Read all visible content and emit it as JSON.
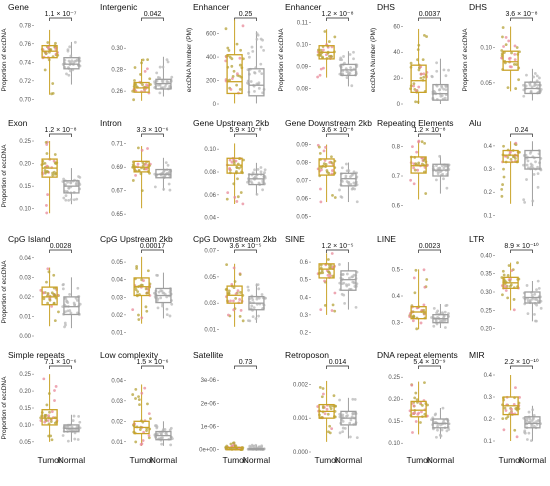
{
  "figure": {
    "y_axis_label": "Proportion of eccDNA",
    "x_categories": [
      "Tumor",
      "Normal"
    ],
    "colors": {
      "tumor_box": "#c9a227",
      "tumor_point": "#b5a33a",
      "normal_box": "#9e9e9e",
      "normal_point": "#b8b8b8",
      "pink_point": "#e88a9a",
      "bracket": "#222222"
    }
  },
  "chart_data": [
    {
      "type": "box",
      "title": "Gene",
      "ylabel": "Proportion of eccDNA",
      "pvalue": "1.1 × 10⁻⁷",
      "yticks": [
        "0.70",
        "0.72",
        "0.74",
        "0.76",
        "0.78"
      ],
      "ylim": [
        0.695,
        0.79
      ],
      "series": [
        {
          "name": "Tumor",
          "box": {
            "q1": 0.745,
            "median": 0.752,
            "q3": 0.758,
            "whisker_low": 0.705,
            "whisker_high": 0.775
          }
        },
        {
          "name": "Normal",
          "box": {
            "q1": 0.733,
            "median": 0.738,
            "q3": 0.745,
            "whisker_low": 0.716,
            "whisker_high": 0.762
          }
        }
      ]
    },
    {
      "type": "box",
      "title": "Intergenic",
      "ylabel": "",
      "pvalue": "0.042",
      "yticks": [
        "0.26",
        "0.28",
        "0.30"
      ],
      "ylim": [
        0.248,
        0.33
      ],
      "series": [
        {
          "name": "Tumor",
          "box": {
            "q1": 0.259,
            "median": 0.263,
            "q3": 0.268,
            "whisker_low": 0.251,
            "whisker_high": 0.29
          }
        },
        {
          "name": "Normal",
          "box": {
            "q1": 0.262,
            "median": 0.267,
            "q3": 0.271,
            "whisker_low": 0.255,
            "whisker_high": 0.292
          }
        }
      ]
    },
    {
      "type": "box",
      "title": "Enhancer",
      "ylabel": "eccDNA Number (PM)",
      "pvalue": "0.25",
      "yticks": [
        "0",
        "200",
        "400",
        "600"
      ],
      "ylim": [
        0,
        750
      ],
      "series": [
        {
          "name": "Tumor",
          "box": {
            "q1": 90,
            "median": 190,
            "q3": 420,
            "whisker_low": 5,
            "whisker_high": 720
          }
        },
        {
          "name": "Normal",
          "box": {
            "q1": 70,
            "median": 160,
            "q3": 300,
            "whisker_low": 5,
            "whisker_high": 620
          }
        }
      ]
    },
    {
      "type": "box",
      "title": "Enhancer",
      "ylabel": "Proportion of eccDNA",
      "pvalue": "1.2 × 10⁻⁸",
      "yticks": [
        "0.08",
        "0.09",
        "0.10",
        "0.11"
      ],
      "ylim": [
        0.073,
        0.113
      ],
      "series": [
        {
          "name": "Tumor",
          "box": {
            "q1": 0.0935,
            "median": 0.0965,
            "q3": 0.0995,
            "whisker_low": 0.085,
            "whisker_high": 0.107
          }
        },
        {
          "name": "Normal",
          "box": {
            "q1": 0.086,
            "median": 0.0885,
            "q3": 0.091,
            "whisker_low": 0.081,
            "whisker_high": 0.097
          }
        }
      ]
    },
    {
      "type": "box",
      "title": "DHS",
      "ylabel": "eccDNA Number (PM)",
      "pvalue": "0.0037",
      "yticks": [
        "0",
        "20",
        "40",
        "60"
      ],
      "ylim": [
        0,
        68
      ],
      "series": [
        {
          "name": "Tumor",
          "box": {
            "q1": 9,
            "median": 18,
            "q3": 30,
            "whisker_low": 0,
            "whisker_high": 58
          }
        },
        {
          "name": "Normal",
          "box": {
            "q1": 3,
            "median": 8,
            "q3": 15,
            "whisker_low": 0,
            "whisker_high": 35
          }
        }
      ]
    },
    {
      "type": "box",
      "title": "DHS",
      "ylabel": "Proportion of eccDNA",
      "pvalue": "3.6 × 10⁻⁸",
      "yticks": [
        "0.05",
        "0.10"
      ],
      "ylim": [
        0.02,
        0.145
      ],
      "series": [
        {
          "name": "Tumor",
          "box": {
            "q1": 0.068,
            "median": 0.08,
            "q3": 0.095,
            "whisker_low": 0.038,
            "whisker_high": 0.13
          }
        },
        {
          "name": "Normal",
          "box": {
            "q1": 0.035,
            "median": 0.042,
            "q3": 0.051,
            "whisker_low": 0.025,
            "whisker_high": 0.07
          }
        }
      ]
    },
    {
      "type": "box",
      "title": "Exon",
      "ylabel": "Proportion of eccDNA",
      "pvalue": "1.2 × 10⁻⁸",
      "yticks": [
        "0.10",
        "0.15",
        "0.20",
        "0.25"
      ],
      "ylim": [
        0.075,
        0.27
      ],
      "series": [
        {
          "name": "Tumor",
          "box": {
            "q1": 0.17,
            "median": 0.19,
            "q3": 0.21,
            "whisker_low": 0.09,
            "whisker_high": 0.25
          }
        },
        {
          "name": "Normal",
          "box": {
            "q1": 0.135,
            "median": 0.15,
            "q3": 0.162,
            "whisker_low": 0.11,
            "whisker_high": 0.19
          }
        }
      ]
    },
    {
      "type": "box",
      "title": "Intron",
      "ylabel": "",
      "pvalue": "3.3 × 10⁻⁶",
      "yticks": [
        "0.65",
        "0.67",
        "0.69",
        "0.71"
      ],
      "ylim": [
        0.645,
        0.72
      ],
      "series": [
        {
          "name": "Tumor",
          "box": {
            "q1": 0.686,
            "median": 0.69,
            "q3": 0.695,
            "whisker_low": 0.655,
            "whisker_high": 0.708
          }
        },
        {
          "name": "Normal",
          "box": {
            "q1": 0.681,
            "median": 0.684,
            "q3": 0.688,
            "whisker_low": 0.67,
            "whisker_high": 0.698
          }
        }
      ]
    },
    {
      "type": "box",
      "title": "Gene Upstream 2kb",
      "ylabel": "",
      "pvalue": "5.9 × 10⁻⁸",
      "yticks": [
        "0.04",
        "0.06",
        "0.08",
        "0.10"
      ],
      "ylim": [
        0.038,
        0.115
      ],
      "series": [
        {
          "name": "Tumor",
          "box": {
            "q1": 0.079,
            "median": 0.086,
            "q3": 0.092,
            "whisker_low": 0.052,
            "whisker_high": 0.105
          }
        },
        {
          "name": "Normal",
          "box": {
            "q1": 0.069,
            "median": 0.074,
            "q3": 0.078,
            "whisker_low": 0.06,
            "whisker_high": 0.088
          }
        }
      ]
    },
    {
      "type": "box",
      "title": "Gene Downstream 2kb",
      "ylabel": "",
      "pvalue": "3.6 × 10⁻⁸",
      "yticks": [
        "0.05",
        "0.06",
        "0.07",
        "0.08",
        "0.09"
      ],
      "ylim": [
        0.048,
        0.097
      ],
      "series": [
        {
          "name": "Tumor",
          "box": {
            "q1": 0.073,
            "median": 0.078,
            "q3": 0.082,
            "whisker_low": 0.058,
            "whisker_high": 0.09
          }
        },
        {
          "name": "Normal",
          "box": {
            "q1": 0.067,
            "median": 0.071,
            "q3": 0.074,
            "whisker_low": 0.058,
            "whisker_high": 0.08
          }
        }
      ]
    },
    {
      "type": "box",
      "title": "Repeating Elements",
      "ylabel": "",
      "pvalue": "1.2 × 10⁻⁸",
      "yticks": [
        "0.6",
        "0.7",
        "0.8"
      ],
      "ylim": [
        0.55,
        0.85
      ],
      "series": [
        {
          "name": "Tumor",
          "box": {
            "q1": 0.71,
            "median": 0.735,
            "q3": 0.765,
            "whisker_low": 0.62,
            "whisker_high": 0.82
          }
        },
        {
          "name": "Normal",
          "box": {
            "q1": 0.7,
            "median": 0.72,
            "q3": 0.74,
            "whisker_low": 0.64,
            "whisker_high": 0.77
          }
        }
      ]
    },
    {
      "type": "box",
      "title": "Alu",
      "ylabel": "",
      "pvalue": "0.24",
      "yticks": [
        "0.1",
        "0.2",
        "0.3",
        "0.4"
      ],
      "ylim": [
        0.08,
        0.46
      ],
      "series": [
        {
          "name": "Tumor",
          "box": {
            "q1": 0.33,
            "median": 0.36,
            "q3": 0.38,
            "whisker_low": 0.15,
            "whisker_high": 0.42
          }
        },
        {
          "name": "Normal",
          "box": {
            "q1": 0.3,
            "median": 0.35,
            "q3": 0.38,
            "whisker_low": 0.14,
            "whisker_high": 0.42
          }
        }
      ]
    },
    {
      "type": "box",
      "title": "CpG Island",
      "ylabel": "Proportion of eccDNA",
      "pvalue": "0.0028",
      "yticks": [
        "0.00",
        "0.01",
        "0.02",
        "0.03",
        "0.04"
      ],
      "ylim": [
        0,
        0.045
      ],
      "series": [
        {
          "name": "Tumor",
          "box": {
            "q1": 0.016,
            "median": 0.02,
            "q3": 0.025,
            "whisker_low": 0.005,
            "whisker_high": 0.035
          }
        },
        {
          "name": "Normal",
          "box": {
            "q1": 0.011,
            "median": 0.015,
            "q3": 0.02,
            "whisker_low": 0.004,
            "whisker_high": 0.03
          }
        }
      ]
    },
    {
      "type": "box",
      "title": "CpG Upstream 2kb",
      "ylabel": "",
      "pvalue": "0.00017",
      "yticks": [
        "0.01",
        "0.02",
        "0.03",
        "0.04",
        "0.05"
      ],
      "ylim": [
        0.008,
        0.058
      ],
      "series": [
        {
          "name": "Tumor",
          "box": {
            "q1": 0.031,
            "median": 0.036,
            "q3": 0.041,
            "whisker_low": 0.015,
            "whisker_high": 0.053
          }
        },
        {
          "name": "Normal",
          "box": {
            "q1": 0.027,
            "median": 0.031,
            "q3": 0.035,
            "whisker_low": 0.018,
            "whisker_high": 0.044
          }
        }
      ]
    },
    {
      "type": "box",
      "title": "CpG Downstream 2kb",
      "ylabel": "",
      "pvalue": "3.6 × 10⁻⁵",
      "yticks": [
        "0.01",
        "0.03",
        "0.05",
        "0.07"
      ],
      "ylim": [
        0.005,
        0.072
      ],
      "series": [
        {
          "name": "Tumor",
          "box": {
            "q1": 0.03,
            "median": 0.036,
            "q3": 0.043,
            "whisker_low": 0.012,
            "whisker_high": 0.06
          }
        },
        {
          "name": "Normal",
          "box": {
            "q1": 0.025,
            "median": 0.03,
            "q3": 0.035,
            "whisker_low": 0.015,
            "whisker_high": 0.045
          }
        }
      ]
    },
    {
      "type": "box",
      "title": "SINE",
      "ylabel": "",
      "pvalue": "1.2 × 10⁻⁵",
      "yticks": [
        "0.2",
        "0.3",
        "0.4",
        "0.5",
        "0.6"
      ],
      "ylim": [
        0.18,
        0.68
      ],
      "series": [
        {
          "name": "Tumor",
          "box": {
            "q1": 0.51,
            "median": 0.56,
            "q3": 0.59,
            "whisker_low": 0.3,
            "whisker_high": 0.65
          }
        },
        {
          "name": "Normal",
          "box": {
            "q1": 0.44,
            "median": 0.5,
            "q3": 0.55,
            "whisker_low": 0.33,
            "whisker_high": 0.6
          }
        }
      ]
    },
    {
      "type": "box",
      "title": "LINE",
      "ylabel": "",
      "pvalue": "0.0023",
      "yticks": [
        "0.3",
        "0.4",
        "0.5"
      ],
      "ylim": [
        0.25,
        0.58
      ],
      "series": [
        {
          "name": "Tumor",
          "box": {
            "q1": 0.315,
            "median": 0.34,
            "q3": 0.36,
            "whisker_low": 0.275,
            "whisker_high": 0.5
          }
        },
        {
          "name": "Normal",
          "box": {
            "q1": 0.3,
            "median": 0.315,
            "q3": 0.33,
            "whisker_low": 0.28,
            "whisker_high": 0.37
          }
        }
      ]
    },
    {
      "type": "box",
      "title": "LTR",
      "ylabel": "",
      "pvalue": "8.9 × 10⁻¹⁰",
      "yticks": [
        "0.20",
        "0.25",
        "0.30",
        "0.35",
        "0.40"
      ],
      "ylim": [
        0.18,
        0.42
      ],
      "series": [
        {
          "name": "Tumor",
          "box": {
            "q1": 0.31,
            "median": 0.325,
            "q3": 0.34,
            "whisker_low": 0.25,
            "whisker_high": 0.38
          }
        },
        {
          "name": "Normal",
          "box": {
            "q1": 0.27,
            "median": 0.285,
            "q3": 0.3,
            "whisker_low": 0.22,
            "whisker_high": 0.33
          }
        }
      ]
    },
    {
      "type": "box",
      "title": "Simple repeats",
      "ylabel": "Proportion of eccDNA",
      "pvalue": "7.1 × 10⁻⁶",
      "yticks": [
        "0.05",
        "0.10",
        "0.15",
        "0.20",
        "0.25"
      ],
      "ylim": [
        0.02,
        0.28
      ],
      "series": [
        {
          "name": "Tumor",
          "box": {
            "q1": 0.1,
            "median": 0.12,
            "q3": 0.145,
            "whisker_low": 0.05,
            "whisker_high": 0.25
          }
        },
        {
          "name": "Normal",
          "box": {
            "q1": 0.08,
            "median": 0.09,
            "q3": 0.1,
            "whisker_low": 0.05,
            "whisker_high": 0.13
          }
        }
      ]
    },
    {
      "type": "box",
      "title": "Low complexity",
      "ylabel": "",
      "pvalue": "1.5 × 10⁻⁶",
      "yticks": [
        "0.01",
        "0.02",
        "0.03",
        "0.04"
      ],
      "ylim": [
        0.005,
        0.048
      ],
      "series": [
        {
          "name": "Tumor",
          "box": {
            "q1": 0.014,
            "median": 0.017,
            "q3": 0.02,
            "whisker_low": 0.008,
            "whisker_high": 0.038
          }
        },
        {
          "name": "Normal",
          "box": {
            "q1": 0.011,
            "median": 0.013,
            "q3": 0.015,
            "whisker_low": 0.008,
            "whisker_high": 0.02
          }
        }
      ]
    },
    {
      "type": "box",
      "title": "Satellite",
      "ylabel": "",
      "pvalue": "0.73",
      "yticks": [
        "0e+00",
        "1e-06",
        "2e-06",
        "3e-06"
      ],
      "ylim": [
        -1e-07,
        3.7e-06
      ],
      "series": [
        {
          "name": "Tumor",
          "box": {
            "q1": 0,
            "median": 0,
            "q3": 1e-07,
            "whisker_low": 0,
            "whisker_high": 3e-07
          }
        },
        {
          "name": "Normal",
          "box": {
            "q1": 0,
            "median": 0,
            "q3": 5e-08,
            "whisker_low": 0,
            "whisker_high": 2e-07
          }
        }
      ]
    },
    {
      "type": "box",
      "title": "Retroposon",
      "ylabel": "",
      "pvalue": "0.014",
      "yticks": [
        "0.000",
        "0.001",
        "0.002"
      ],
      "ylim": [
        0,
        0.0026
      ],
      "series": [
        {
          "name": "Tumor",
          "box": {
            "q1": 0.001,
            "median": 0.0012,
            "q3": 0.0014,
            "whisker_low": 0.0003,
            "whisker_high": 0.0021
          }
        },
        {
          "name": "Normal",
          "box": {
            "q1": 0.0008,
            "median": 0.001,
            "q3": 0.0012,
            "whisker_low": 0.0004,
            "whisker_high": 0.0016
          }
        }
      ]
    },
    {
      "type": "box",
      "title": "DNA repeat elements",
      "ylabel": "",
      "pvalue": "5.4 × 10⁻⁹",
      "yticks": [
        "0.10",
        "0.15",
        "0.20",
        "0.25"
      ],
      "ylim": [
        0.08,
        0.28
      ],
      "series": [
        {
          "name": "Tumor",
          "box": {
            "q1": 0.16,
            "median": 0.175,
            "q3": 0.195,
            "whisker_low": 0.12,
            "whisker_high": 0.24
          }
        },
        {
          "name": "Normal",
          "box": {
            "q1": 0.135,
            "median": 0.145,
            "q3": 0.155,
            "whisker_low": 0.11,
            "whisker_high": 0.18
          }
        }
      ]
    },
    {
      "type": "box",
      "title": "MIR",
      "ylabel": "",
      "pvalue": "2.2 × 10⁻¹⁰",
      "yticks": [
        "0.1",
        "0.2",
        "0.3",
        "0.4"
      ],
      "ylim": [
        0.05,
        0.45
      ],
      "series": [
        {
          "name": "Tumor",
          "box": {
            "q1": 0.22,
            "median": 0.26,
            "q3": 0.3,
            "whisker_low": 0.1,
            "whisker_high": 0.4
          }
        },
        {
          "name": "Normal",
          "box": {
            "q1": 0.16,
            "median": 0.18,
            "q3": 0.21,
            "whisker_low": 0.1,
            "whisker_high": 0.26
          }
        }
      ]
    }
  ]
}
